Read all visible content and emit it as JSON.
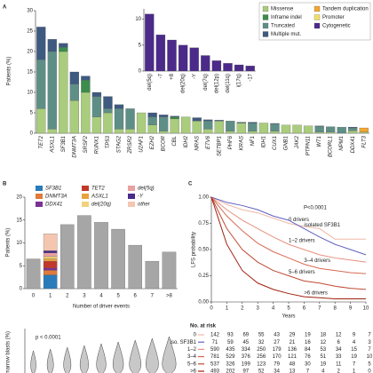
{
  "chart_data": [
    {
      "panel": "A",
      "type": "bar",
      "ylabel": "Patients (%)",
      "legend": "upper right",
      "categories": [
        "TET2",
        "ASXL1",
        "SF3B1",
        "DNMT3A",
        "SRSF2",
        "RUNX1",
        "TP53",
        "STAG2",
        "ZRSR2",
        "U2AF1",
        "EZH2",
        "BCOR",
        "CBL",
        "IDH2",
        "NRAS",
        "ETV6",
        "SETBP1",
        "PHF6",
        "KRAS",
        "NF1",
        "IDH1",
        "CUX1",
        "GNB1",
        "JAK2",
        "PTPN11",
        "WT1",
        "BCORL1",
        "NPM1",
        "DDX41",
        "FLT3"
      ],
      "series": [
        {
          "name": "Missense",
          "color": "#a9cd7c",
          "values": [
            6,
            1,
            20,
            8,
            10,
            4,
            5,
            1,
            1,
            5,
            2,
            0.5,
            3.5,
            4,
            3,
            1,
            3,
            0.5,
            2.5,
            0.5,
            2.5,
            0.5,
            2,
            2,
            1.8,
            0.3,
            0.3,
            0,
            0.6,
            0.3
          ]
        },
        {
          "name": "Inframe indel",
          "color": "#3c8c4c",
          "values": [
            0,
            0,
            1,
            0,
            3,
            0,
            0,
            0,
            0,
            0,
            0,
            0,
            0.5,
            0,
            0,
            0,
            0,
            0,
            0,
            0,
            0,
            0,
            0,
            0,
            0,
            0,
            0,
            0,
            0,
            0
          ]
        },
        {
          "name": "Truncated",
          "color": "#5e8f86",
          "values": [
            12,
            19,
            0,
            4,
            0,
            5,
            1,
            5,
            5,
            0,
            2,
            3.5,
            0,
            0,
            0,
            2,
            0,
            2.5,
            0,
            2,
            0,
            1.8,
            0,
            0,
            0,
            1.4,
            1.3,
            1.5,
            0.7,
            0
          ]
        },
        {
          "name": "Multiple mut.",
          "color": "#3e5a80",
          "values": [
            8,
            3,
            1,
            3,
            1,
            1,
            3,
            1,
            0,
            0,
            1,
            0.5,
            0.2,
            0,
            0.8,
            0.3,
            0.2,
            0,
            0.2,
            0.2,
            0,
            0.1,
            0,
            0,
            0,
            0.1,
            0,
            0,
            0.2,
            0
          ]
        },
        {
          "name": "Tandem duplication",
          "color": "#f2a630",
          "values": [
            0,
            0,
            0,
            0,
            0,
            0,
            0,
            0,
            0,
            0,
            0,
            0,
            0,
            0,
            0,
            0,
            0,
            0,
            0,
            0,
            0,
            0,
            0,
            0,
            0,
            0,
            0,
            0,
            0,
            1
          ]
        },
        {
          "name": "Promoter",
          "color": "#efe06a",
          "values": [
            0,
            0,
            0,
            0,
            0,
            0,
            0,
            0,
            0,
            0,
            0,
            0,
            0,
            0,
            0,
            0,
            0,
            0,
            0,
            0,
            0,
            0,
            0,
            0,
            0,
            0,
            0,
            0,
            0,
            0
          ]
        },
        {
          "name": "Cytogenetic",
          "color": "#4b2a8a",
          "values": [
            0,
            0,
            0,
            0,
            0,
            0,
            0,
            0,
            0,
            0,
            0,
            0,
            0,
            0,
            0,
            0,
            0,
            0,
            0,
            0,
            0,
            0,
            0,
            0,
            0,
            0,
            0,
            0,
            0,
            0
          ]
        }
      ],
      "ylim": [
        0,
        30
      ],
      "yticks": [
        0,
        5,
        10,
        15,
        20,
        25,
        30
      ]
    },
    {
      "type": "bar",
      "categories": [
        "del(5q)",
        "-7",
        "+8",
        "del(20q)",
        "-Y",
        "del(7q)",
        "del(12p)",
        "del(11q)",
        "i(17q)",
        "-17"
      ],
      "values": [
        11,
        7,
        6,
        5,
        4.5,
        3,
        2,
        1.5,
        1.2,
        1
      ],
      "color": "#4b2a8a",
      "ylim": [
        0,
        12
      ],
      "yticks": [
        0,
        5,
        10
      ]
    },
    {
      "panel": "B",
      "type": "bar",
      "xlabel": "Number of driver events",
      "ylabel": "Patients (%)",
      "categories": [
        "0",
        "1",
        "2",
        "3",
        "4",
        "5",
        "6",
        "7",
        ">8"
      ],
      "series": [
        {
          "color": "#a6a6a6",
          "values": [
            6.5,
            null,
            14,
            16,
            14.5,
            13,
            9.5,
            6,
            8
          ]
        },
        {
          "name": "SF3B1",
          "color": "#2a7bba",
          "values": [
            null,
            3,
            null,
            null,
            null,
            null,
            null,
            null,
            null
          ]
        },
        {
          "name": "DNMT3A",
          "color": "#e07b39",
          "values": [
            null,
            1,
            null,
            null,
            null,
            null,
            null,
            null,
            null
          ]
        },
        {
          "name": "DDX41",
          "color": "#7b3294",
          "values": [
            null,
            0.5,
            null,
            null,
            null,
            null,
            null,
            null,
            null
          ]
        },
        {
          "name": "TET2",
          "color": "#c0392b",
          "values": [
            null,
            1.5,
            null,
            null,
            null,
            null,
            null,
            null,
            null
          ]
        },
        {
          "name": "ASXL1",
          "color": "#e8a33d",
          "values": [
            null,
            0.5,
            null,
            null,
            null,
            null,
            null,
            null,
            null
          ]
        },
        {
          "name": "del(20q)",
          "color": "#f2d27a",
          "values": [
            null,
            0.5,
            null,
            null,
            null,
            null,
            null,
            null,
            null
          ]
        },
        {
          "name": "del(5q)",
          "color": "#e8a0a0",
          "values": [
            null,
            0.8,
            null,
            null,
            null,
            null,
            null,
            null,
            null
          ]
        },
        {
          "name": "-Y",
          "color": "#4b2a8a",
          "values": [
            null,
            0.5,
            null,
            null,
            null,
            null,
            null,
            null,
            null
          ]
        },
        {
          "name": "other",
          "color": "#f4c6b0",
          "values": [
            null,
            3.7,
            null,
            null,
            null,
            null,
            null,
            null,
            null
          ]
        }
      ],
      "ylim": [
        0,
        20
      ],
      "yticks": [
        0,
        5,
        10,
        15,
        20
      ]
    },
    {
      "type": "violin",
      "annotation": "p < 0.0001",
      "ylabel": "Bone marrow blasts (%)"
    },
    {
      "panel": "C",
      "type": "line",
      "xlabel": "Years",
      "ylabel": "LFS probability",
      "annotation": "P<0.0001",
      "x": [
        0,
        1,
        2,
        3,
        4,
        5,
        6,
        7,
        8,
        9,
        10
      ],
      "series": [
        {
          "name": "0 drivers",
          "color": "#f0b8a8",
          "values": [
            1,
            0.93,
            0.88,
            0.85,
            0.8,
            0.75,
            0.72,
            0.7,
            0.6,
            0.6,
            0.6
          ]
        },
        {
          "name": "isolated SF3B1",
          "color": "#6060c0",
          "values": [
            1,
            0.95,
            0.92,
            0.88,
            0.82,
            0.78,
            0.7,
            0.62,
            0.55,
            0.5,
            0.45
          ]
        },
        {
          "name": "1–2 drivers",
          "color": "#e89080",
          "values": [
            1,
            0.88,
            0.78,
            0.7,
            0.62,
            0.55,
            0.5,
            0.45,
            0.42,
            0.4,
            0.38
          ]
        },
        {
          "name": "3–4 drivers",
          "color": "#d86a55",
          "values": [
            1,
            0.82,
            0.68,
            0.56,
            0.48,
            0.42,
            0.36,
            0.32,
            0.3,
            0.28,
            0.27
          ]
        },
        {
          "name": "5–6 drivers",
          "color": "#c04a35",
          "values": [
            1,
            0.7,
            0.5,
            0.38,
            0.3,
            0.25,
            0.2,
            0.18,
            0.15,
            0.13,
            0.12
          ]
        },
        {
          "name": ">6 drivers",
          "color": "#a0200f",
          "values": [
            1,
            0.55,
            0.3,
            0.18,
            0.12,
            0.08,
            0.05,
            0.04,
            0.03,
            0.03,
            0.03
          ]
        }
      ],
      "xlim": [
        0,
        10
      ],
      "xticks": [
        0,
        1,
        2,
        3,
        4,
        5,
        6,
        7,
        8,
        9,
        10
      ],
      "ylim": [
        0,
        1
      ],
      "yticks": [
        {
          "value": 0,
          "label": "0.00"
        },
        {
          "value": 0.25,
          "label": "0.25"
        },
        {
          "value": 0.5,
          "label": "0.50"
        },
        {
          "value": 0.75,
          "label": "0.75"
        },
        {
          "value": 1,
          "label": "1.00"
        }
      ],
      "at_risk": {
        "title": "No. at risk",
        "rows": [
          {
            "label": "0",
            "values": [
              142,
              93,
              69,
              55,
              43,
              29,
              19,
              18,
              12,
              9,
              7
            ]
          },
          {
            "label": "iso. SF3B1",
            "values": [
              71,
              59,
              45,
              32,
              27,
              21,
              16,
              12,
              6,
              4,
              3
            ]
          },
          {
            "label": "1–2",
            "values": [
              590,
              435,
              334,
              250,
              179,
              136,
              84,
              53,
              34,
              15,
              7
            ]
          },
          {
            "label": "3–4",
            "values": [
              781,
              529,
              376,
              256,
              170,
              121,
              76,
              51,
              33,
              19,
              10
            ]
          },
          {
            "label": "5–6",
            "values": [
              537,
              326,
              199,
              123,
              79,
              48,
              30,
              19,
              11,
              7,
              5
            ]
          },
          {
            "label": ">6",
            "values": [
              493,
              202,
              97,
              52,
              34,
              13,
              7,
              4,
              2,
              1,
              0
            ]
          }
        ]
      }
    }
  ]
}
